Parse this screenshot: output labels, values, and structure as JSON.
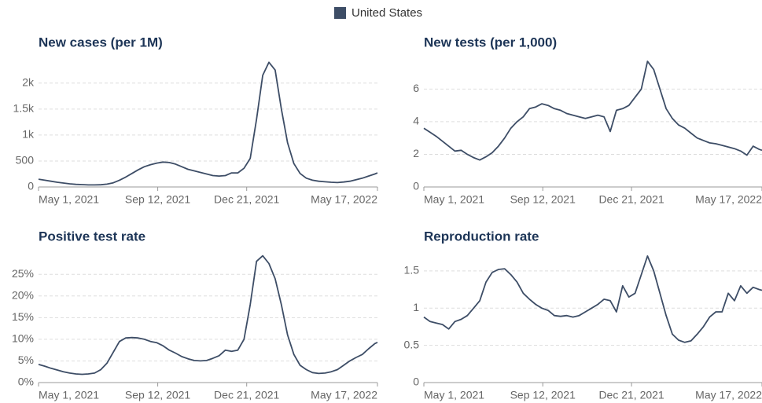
{
  "chart_data": [
    {
      "type": "line",
      "title": "New cases (per 1M)",
      "x": [
        "2021-05-01",
        "2021-05-08",
        "2021-05-15",
        "2021-05-22",
        "2021-05-29",
        "2021-06-05",
        "2021-06-12",
        "2021-06-19",
        "2021-06-26",
        "2021-07-03",
        "2021-07-10",
        "2021-07-17",
        "2021-07-24",
        "2021-07-31",
        "2021-08-07",
        "2021-08-14",
        "2021-08-21",
        "2021-08-28",
        "2021-09-04",
        "2021-09-11",
        "2021-09-18",
        "2021-09-25",
        "2021-10-02",
        "2021-10-09",
        "2021-10-16",
        "2021-10-23",
        "2021-10-30",
        "2021-11-06",
        "2021-11-13",
        "2021-11-20",
        "2021-11-27",
        "2021-12-04",
        "2021-12-11",
        "2021-12-18",
        "2021-12-25",
        "2022-01-01",
        "2022-01-08",
        "2022-01-15",
        "2022-01-22",
        "2022-01-29",
        "2022-02-05",
        "2022-02-12",
        "2022-02-19",
        "2022-02-26",
        "2022-03-05",
        "2022-03-12",
        "2022-03-19",
        "2022-03-26",
        "2022-04-02",
        "2022-04-09",
        "2022-04-16",
        "2022-04-23",
        "2022-04-30",
        "2022-05-07",
        "2022-05-14",
        "2022-05-17"
      ],
      "series": [
        {
          "name": "United States",
          "color": "#3d4d66",
          "values": [
            150,
            130,
            110,
            90,
            75,
            60,
            50,
            45,
            40,
            40,
            42,
            55,
            80,
            130,
            190,
            260,
            330,
            390,
            430,
            460,
            480,
            470,
            440,
            390,
            340,
            310,
            280,
            250,
            220,
            210,
            220,
            270,
            270,
            360,
            550,
            1300,
            2150,
            2400,
            2250,
            1500,
            850,
            450,
            260,
            170,
            130,
            110,
            100,
            90,
            85,
            95,
            110,
            140,
            170,
            210,
            250,
            270
          ]
        }
      ],
      "xlim": [
        "2021-05-01",
        "2022-05-17"
      ],
      "xticks": [
        {
          "value": "2021-05-01",
          "label": "May 1, 2021"
        },
        {
          "value": "2021-09-12",
          "label": "Sep 12, 2021"
        },
        {
          "value": "2021-12-21",
          "label": "Dec 21, 2021"
        },
        {
          "value": "2022-05-17",
          "label": "May 17, 2022"
        }
      ],
      "ylim": [
        0,
        2420
      ],
      "yticks": [
        0,
        500,
        {
          "value": 1000,
          "label": "1k"
        },
        {
          "value": 1500,
          "label": "1.5k"
        },
        {
          "value": 2000,
          "label": "2k"
        }
      ],
      "grid": true
    },
    {
      "type": "line",
      "title": "New tests (per 1,000)",
      "x": [
        "2021-05-01",
        "2021-05-08",
        "2021-05-15",
        "2021-05-22",
        "2021-05-29",
        "2021-06-05",
        "2021-06-12",
        "2021-06-19",
        "2021-06-26",
        "2021-07-03",
        "2021-07-10",
        "2021-07-17",
        "2021-07-24",
        "2021-07-31",
        "2021-08-07",
        "2021-08-14",
        "2021-08-21",
        "2021-08-28",
        "2021-09-04",
        "2021-09-11",
        "2021-09-18",
        "2021-09-25",
        "2021-10-02",
        "2021-10-09",
        "2021-10-16",
        "2021-10-23",
        "2021-10-30",
        "2021-11-06",
        "2021-11-13",
        "2021-11-20",
        "2021-11-27",
        "2021-12-04",
        "2021-12-11",
        "2021-12-18",
        "2021-12-25",
        "2022-01-01",
        "2022-01-08",
        "2022-01-15",
        "2022-01-22",
        "2022-01-29",
        "2022-02-05",
        "2022-02-12",
        "2022-02-19",
        "2022-02-26",
        "2022-03-05",
        "2022-03-12",
        "2022-03-19",
        "2022-03-26",
        "2022-04-02",
        "2022-04-09",
        "2022-04-16",
        "2022-04-23",
        "2022-04-30",
        "2022-05-07",
        "2022-05-14",
        "2022-05-17"
      ],
      "series": [
        {
          "color": "#3d4d66",
          "values": [
            3.6,
            3.35,
            3.1,
            2.8,
            2.5,
            2.2,
            2.25,
            2.0,
            1.8,
            1.65,
            1.85,
            2.1,
            2.5,
            3.0,
            3.6,
            4.0,
            4.3,
            4.8,
            4.9,
            5.1,
            5.0,
            4.8,
            4.7,
            4.5,
            4.4,
            4.3,
            4.2,
            4.3,
            4.4,
            4.3,
            3.4,
            4.7,
            4.8,
            5.0,
            5.5,
            6.0,
            7.7,
            7.2,
            6.0,
            4.8,
            4.2,
            3.8,
            3.6,
            3.3,
            3.0,
            2.85,
            2.7,
            2.65,
            2.55,
            2.45,
            2.35,
            2.2,
            1.95,
            2.5,
            2.3,
            2.25
          ]
        }
      ],
      "xlim": [
        "2021-05-01",
        "2022-05-17"
      ],
      "xticks": [
        {
          "value": "2021-05-01",
          "label": "May 1, 2021"
        },
        {
          "value": "2021-09-12",
          "label": "Sep 12, 2021"
        },
        {
          "value": "2021-12-21",
          "label": "Dec 21, 2021"
        },
        {
          "value": "2022-05-17",
          "label": "May 17, 2022"
        }
      ],
      "ylim": [
        0,
        7.8
      ],
      "yticks": [
        0,
        2,
        4,
        6
      ],
      "grid": true
    },
    {
      "type": "line",
      "title": "Positive test rate",
      "x": [
        "2021-05-01",
        "2021-05-08",
        "2021-05-15",
        "2021-05-22",
        "2021-05-29",
        "2021-06-05",
        "2021-06-12",
        "2021-06-19",
        "2021-06-26",
        "2021-07-03",
        "2021-07-10",
        "2021-07-17",
        "2021-07-24",
        "2021-07-31",
        "2021-08-07",
        "2021-08-14",
        "2021-08-21",
        "2021-08-28",
        "2021-09-04",
        "2021-09-11",
        "2021-09-18",
        "2021-09-25",
        "2021-10-02",
        "2021-10-09",
        "2021-10-16",
        "2021-10-23",
        "2021-10-30",
        "2021-11-06",
        "2021-11-13",
        "2021-11-20",
        "2021-11-27",
        "2021-12-04",
        "2021-12-11",
        "2021-12-18",
        "2021-12-25",
        "2022-01-01",
        "2022-01-08",
        "2022-01-15",
        "2022-01-22",
        "2022-01-29",
        "2022-02-05",
        "2022-02-12",
        "2022-02-19",
        "2022-02-26",
        "2022-03-05",
        "2022-03-12",
        "2022-03-19",
        "2022-03-26",
        "2022-04-02",
        "2022-04-09",
        "2022-04-16",
        "2022-04-23",
        "2022-04-30",
        "2022-05-07",
        "2022-05-14",
        "2022-05-17"
      ],
      "series": [
        {
          "color": "#3d4d66",
          "values": [
            4.2,
            3.8,
            3.3,
            2.9,
            2.5,
            2.2,
            2.0,
            1.9,
            2.0,
            2.2,
            3.0,
            4.5,
            7,
            9.5,
            10.3,
            10.4,
            10.3,
            10.0,
            9.5,
            9.2,
            8.5,
            7.5,
            6.8,
            6.0,
            5.5,
            5.1,
            5.0,
            5.1,
            5.6,
            6.2,
            7.5,
            7.2,
            7.5,
            10,
            18,
            28,
            29.3,
            27.5,
            24,
            18,
            11,
            6.5,
            4,
            3,
            2.3,
            2.1,
            2.2,
            2.5,
            3.0,
            4.0,
            5.0,
            5.8,
            6.5,
            7.8,
            9.0,
            9.3
          ]
        }
      ],
      "xlim": [
        "2021-05-01",
        "2022-05-17"
      ],
      "xticks": [
        {
          "value": "2021-05-01",
          "label": "May 1, 2021"
        },
        {
          "value": "2021-09-12",
          "label": "Sep 12, 2021"
        },
        {
          "value": "2021-12-21",
          "label": "Dec 21, 2021"
        },
        {
          "value": "2022-05-17",
          "label": "May 17, 2022"
        }
      ],
      "ylim": [
        0,
        29.4
      ],
      "yticks": [
        {
          "value": 0,
          "label": "0%"
        },
        {
          "value": 5,
          "label": "5%"
        },
        {
          "value": 10,
          "label": "10%"
        },
        {
          "value": 15,
          "label": "15%"
        },
        {
          "value": 20,
          "label": "20%"
        },
        {
          "value": 25,
          "label": "25%"
        }
      ],
      "grid": true
    },
    {
      "type": "line",
      "title": "Reproduction rate",
      "x": [
        "2021-05-01",
        "2021-05-08",
        "2021-05-15",
        "2021-05-22",
        "2021-05-29",
        "2021-06-05",
        "2021-06-12",
        "2021-06-19",
        "2021-06-26",
        "2021-07-03",
        "2021-07-10",
        "2021-07-17",
        "2021-07-24",
        "2021-07-31",
        "2021-08-07",
        "2021-08-14",
        "2021-08-21",
        "2021-08-28",
        "2021-09-04",
        "2021-09-11",
        "2021-09-18",
        "2021-09-25",
        "2021-10-02",
        "2021-10-09",
        "2021-10-16",
        "2021-10-23",
        "2021-10-30",
        "2021-11-06",
        "2021-11-13",
        "2021-11-20",
        "2021-11-27",
        "2021-12-04",
        "2021-12-11",
        "2021-12-18",
        "2021-12-25",
        "2022-01-01",
        "2022-01-08",
        "2022-01-15",
        "2022-01-22",
        "2022-01-29",
        "2022-02-05",
        "2022-02-12",
        "2022-02-19",
        "2022-02-26",
        "2022-03-05",
        "2022-03-12",
        "2022-03-19",
        "2022-03-26",
        "2022-04-02",
        "2022-04-09",
        "2022-04-16",
        "2022-04-23",
        "2022-04-30",
        "2022-05-07",
        "2022-05-14",
        "2022-05-17"
      ],
      "series": [
        {
          "color": "#3d4d66",
          "values": [
            0.88,
            0.82,
            0.8,
            0.78,
            0.72,
            0.82,
            0.85,
            0.9,
            1.0,
            1.1,
            1.35,
            1.48,
            1.52,
            1.53,
            1.45,
            1.35,
            1.2,
            1.12,
            1.05,
            1.0,
            0.97,
            0.9,
            0.89,
            0.9,
            0.88,
            0.9,
            0.95,
            1.0,
            1.05,
            1.12,
            1.1,
            0.95,
            1.3,
            1.15,
            1.2,
            1.45,
            1.7,
            1.5,
            1.2,
            0.9,
            0.65,
            0.57,
            0.54,
            0.56,
            0.65,
            0.75,
            0.88,
            0.95,
            0.95,
            1.2,
            1.1,
            1.3,
            1.2,
            1.28,
            1.25,
            1.24
          ]
        }
      ],
      "xlim": [
        "2021-05-01",
        "2022-05-17"
      ],
      "xticks": [
        {
          "value": "2021-05-01",
          "label": "May 1, 2021"
        },
        {
          "value": "2021-09-12",
          "label": "Sep 12, 2021"
        },
        {
          "value": "2021-12-21",
          "label": "Dec 21, 2021"
        },
        {
          "value": "2022-05-17",
          "label": "May 17, 2022"
        }
      ],
      "ylim": [
        0,
        1.71
      ],
      "yticks": [
        0,
        0.5,
        1,
        1.5
      ],
      "grid": true
    }
  ]
}
